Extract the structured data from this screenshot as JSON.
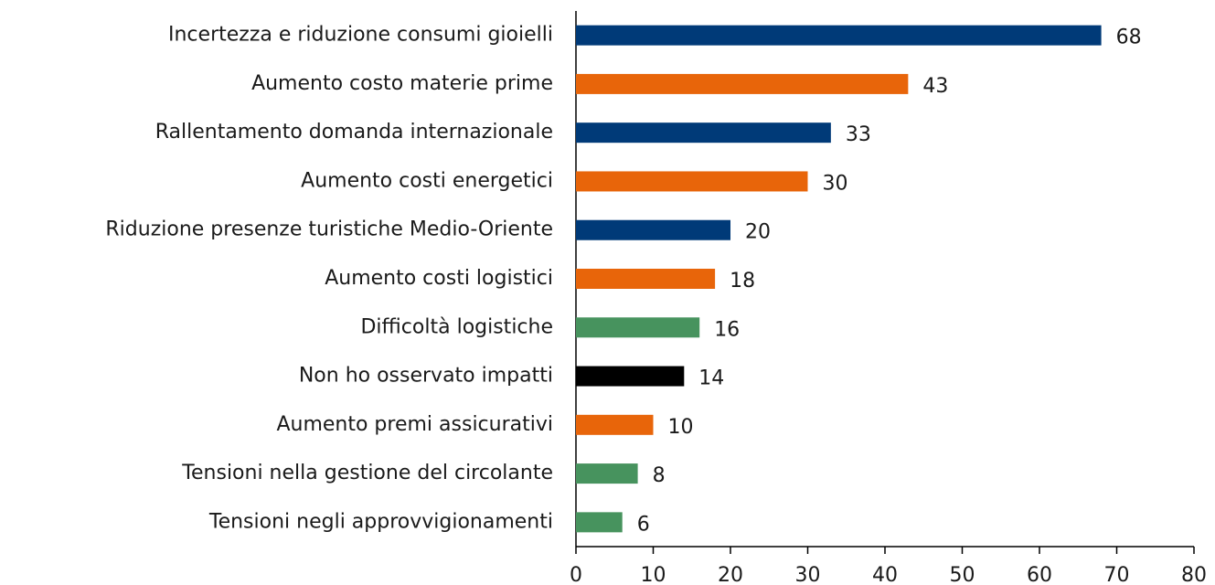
{
  "chart_data": {
    "type": "barh",
    "categories": [
      "Incertezza e riduzione consumi gioielli",
      "Aumento costo materie prime",
      "Rallentamento domanda internazionale",
      "Aumento costi energetici",
      "Riduzione presenze turistiche Medio-Oriente",
      "Aumento costi logistici",
      "Difficoltà logistiche",
      "Non ho osservato impatti",
      "Aumento premi assicurativi",
      "Tensioni nella gestione del circolante",
      "Tensioni negli approvvigionamenti"
    ],
    "values": [
      68,
      43,
      33,
      30,
      20,
      18,
      16,
      14,
      10,
      8,
      6
    ],
    "colors": [
      "#003a78",
      "#e8650a",
      "#003a78",
      "#e8650a",
      "#003a78",
      "#e8650a",
      "#47935e",
      "#000000",
      "#e8650a",
      "#47935e",
      "#47935e"
    ],
    "xlim": [
      0,
      80
    ],
    "xticks": [
      0,
      10,
      20,
      30,
      40,
      50,
      60,
      70,
      80
    ]
  }
}
